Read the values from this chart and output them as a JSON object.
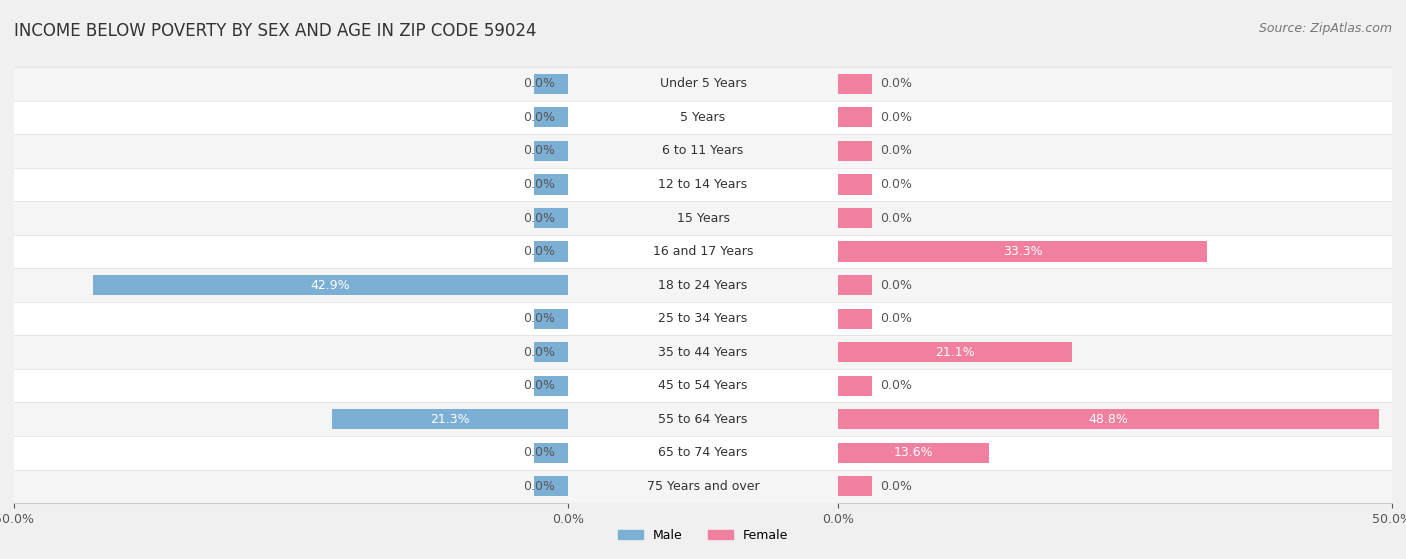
{
  "title": "INCOME BELOW POVERTY BY SEX AND AGE IN ZIP CODE 59024",
  "source": "Source: ZipAtlas.com",
  "categories": [
    "Under 5 Years",
    "5 Years",
    "6 to 11 Years",
    "12 to 14 Years",
    "15 Years",
    "16 and 17 Years",
    "18 to 24 Years",
    "25 to 34 Years",
    "35 to 44 Years",
    "45 to 54 Years",
    "55 to 64 Years",
    "65 to 74 Years",
    "75 Years and over"
  ],
  "male_values": [
    0.0,
    0.0,
    0.0,
    0.0,
    0.0,
    0.0,
    42.9,
    0.0,
    0.0,
    0.0,
    21.3,
    0.0,
    0.0
  ],
  "female_values": [
    0.0,
    0.0,
    0.0,
    0.0,
    0.0,
    33.3,
    0.0,
    0.0,
    21.1,
    0.0,
    48.8,
    13.6,
    0.0
  ],
  "male_color": "#7bafd4",
  "female_color": "#f07fa0",
  "male_label": "Male",
  "female_label": "Female",
  "background_color": "#f0f0f0",
  "row_colors": [
    "#f5f5f5",
    "#ffffff"
  ],
  "xlim": 50.0,
  "min_bar_val": 3.0,
  "title_fontsize": 12,
  "source_fontsize": 9,
  "label_fontsize": 9,
  "cat_fontsize": 9,
  "tick_fontsize": 9,
  "bar_height": 0.6
}
